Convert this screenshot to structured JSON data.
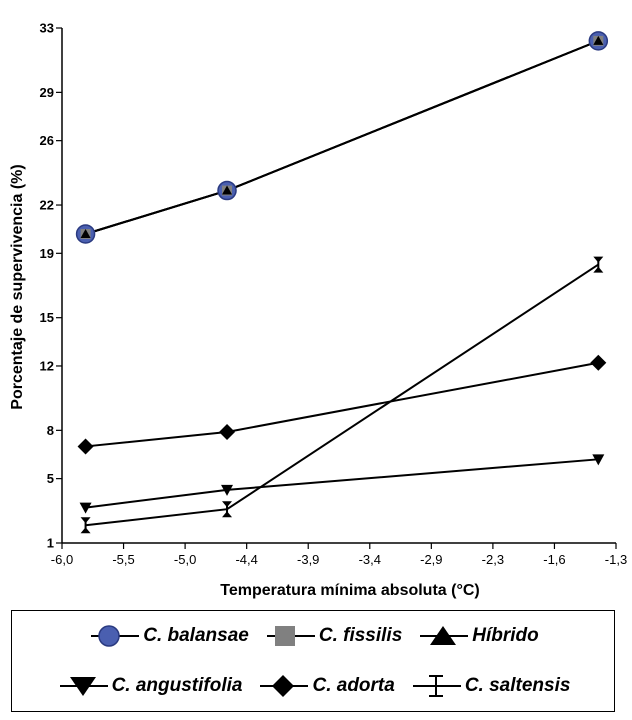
{
  "chart_data": {
    "type": "line",
    "xlabel": "Temperatura mínima absoluta (°C)",
    "ylabel": "Porcentaje de supervivencia (%)",
    "xlim": [
      -6.0,
      -1.3
    ],
    "ylim": [
      1,
      33
    ],
    "xticks": [
      "-6,0",
      "-5,5",
      "-5,0",
      "-4,4",
      "-3,9",
      "-3,4",
      "-2,9",
      "-2,3",
      "-1,6",
      "-1,3"
    ],
    "yticks": [
      "1",
      "5",
      "8",
      "12",
      "15",
      "19",
      "22",
      "26",
      "29",
      "33"
    ],
    "series": [
      {
        "name": "C. balansae",
        "marker": "circle",
        "color": "#4a5fb0",
        "x": [
          -5.8,
          -4.6,
          -1.45
        ],
        "y": [
          20.2,
          22.9,
          32.2
        ]
      },
      {
        "name": "C. fissilis",
        "marker": "square",
        "color": "#808080",
        "x": [
          -5.8,
          -4.6,
          -1.45
        ],
        "y": [
          20.2,
          22.9,
          32.2
        ]
      },
      {
        "name": "Híbrido",
        "marker": "triangle-up",
        "color": "#000000",
        "x": [
          -5.8,
          -4.6,
          -1.45
        ],
        "y": [
          20.2,
          22.9,
          32.2
        ]
      },
      {
        "name": "C. angustifolia",
        "marker": "triangle-down",
        "color": "#000000",
        "x": [
          -5.8,
          -4.6,
          -1.45
        ],
        "y": [
          3.2,
          4.3,
          6.2
        ]
      },
      {
        "name": "C. adorta",
        "marker": "diamond",
        "color": "#000000",
        "x": [
          -5.8,
          -4.6,
          -1.45
        ],
        "y": [
          7.0,
          7.9,
          12.2
        ]
      },
      {
        "name": "C. saltensis",
        "marker": "hourglass",
        "color": "#000000",
        "x": [
          -5.8,
          -4.6,
          -1.45
        ],
        "y": [
          2.1,
          3.1,
          18.3
        ]
      }
    ],
    "legend_position": "bottom",
    "grid": false
  },
  "legend": {
    "balansae": "C. balansae",
    "fissilis": "C. fissilis",
    "hibrido": "Híbrido",
    "angustifolia": "C. angustifolia",
    "adorta": "C. adorta",
    "saltensis": "C. saltensis"
  }
}
